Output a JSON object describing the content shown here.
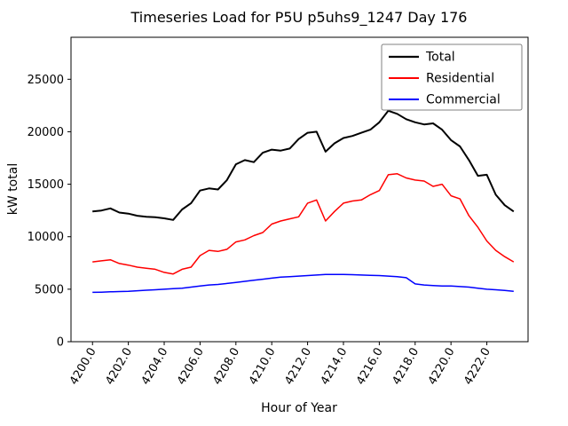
{
  "colors": {
    "background": "#ffffff",
    "axis": "#000000",
    "legend_edge": "#808080",
    "total": "#000000",
    "residential": "#ff0000",
    "commercial": "#0000ff"
  },
  "chart_data": {
    "type": "line",
    "title": "Timeseries Load for P5U p5uhs9_1247  Day 176",
    "xlabel": "Hour of Year",
    "ylabel": "kW total",
    "xlim": [
      4198.8,
      4224.3
    ],
    "ylim": [
      0,
      29000
    ],
    "grid": false,
    "legend_position": "upper right",
    "x_tick_rotation": -60,
    "x_ticks": [
      4200,
      4202,
      4204,
      4206,
      4208,
      4210,
      4212,
      4214,
      4216,
      4218,
      4220,
      4222
    ],
    "x_tick_labels": [
      "4200.0",
      "4202.0",
      "4204.0",
      "4206.0",
      "4208.0",
      "4210.0",
      "4212.0",
      "4214.0",
      "4216.0",
      "4218.0",
      "4220.0",
      "4222.0"
    ],
    "y_ticks": [
      0,
      5000,
      10000,
      15000,
      20000,
      25000
    ],
    "y_tick_labels": [
      "0",
      "5000",
      "10000",
      "15000",
      "20000",
      "25000"
    ],
    "x": [
      4200.0,
      4200.5,
      4201.0,
      4201.5,
      4202.0,
      4202.5,
      4203.0,
      4203.5,
      4204.0,
      4204.5,
      4205.0,
      4205.5,
      4206.0,
      4206.5,
      4207.0,
      4207.5,
      4208.0,
      4208.5,
      4209.0,
      4209.5,
      4210.0,
      4210.5,
      4211.0,
      4211.5,
      4212.0,
      4212.5,
      4213.0,
      4213.5,
      4214.0,
      4214.5,
      4215.0,
      4215.5,
      4216.0,
      4216.5,
      4217.0,
      4217.5,
      4218.0,
      4218.5,
      4219.0,
      4219.5,
      4220.0,
      4220.5,
      4221.0,
      4221.5,
      4222.0,
      4222.5,
      4223.0,
      4223.5
    ],
    "series": [
      {
        "name": "Total",
        "color": "#000000",
        "width": 2.0,
        "values": [
          12400,
          12500,
          12700,
          12300,
          12200,
          12000,
          11900,
          11850,
          11750,
          11600,
          12600,
          13200,
          14400,
          14600,
          14500,
          15400,
          16900,
          17300,
          17100,
          18000,
          18300,
          18200,
          18400,
          19300,
          19900,
          20000,
          18100,
          18900,
          19400,
          19600,
          19900,
          20200,
          20900,
          22000,
          21700,
          21200,
          20900,
          20700,
          20800,
          20200,
          19200,
          18600,
          17300,
          15800,
          15900,
          14000,
          13000,
          12400
        ]
      },
      {
        "name": "Residential",
        "color": "#ff0000",
        "width": 1.5,
        "values": [
          7600,
          7700,
          7800,
          7450,
          7300,
          7100,
          7000,
          6900,
          6600,
          6450,
          6900,
          7100,
          8200,
          8700,
          8600,
          8800,
          9500,
          9700,
          10100,
          10400,
          11200,
          11500,
          11700,
          11900,
          13200,
          13500,
          11500,
          12400,
          13200,
          13400,
          13500,
          14000,
          14400,
          15900,
          16000,
          15600,
          15400,
          15300,
          14800,
          15000,
          13900,
          13600,
          12000,
          10900,
          9600,
          8700,
          8100,
          7600
        ]
      },
      {
        "name": "Commercial",
        "color": "#0000ff",
        "width": 1.5,
        "values": [
          4700,
          4720,
          4750,
          4780,
          4800,
          4850,
          4900,
          4950,
          5000,
          5050,
          5100,
          5200,
          5300,
          5400,
          5450,
          5550,
          5650,
          5750,
          5850,
          5950,
          6050,
          6150,
          6200,
          6250,
          6300,
          6350,
          6400,
          6400,
          6400,
          6380,
          6350,
          6320,
          6300,
          6250,
          6200,
          6100,
          5500,
          5400,
          5350,
          5300,
          5300,
          5250,
          5200,
          5100,
          5000,
          4950,
          4880,
          4800
        ]
      }
    ]
  }
}
